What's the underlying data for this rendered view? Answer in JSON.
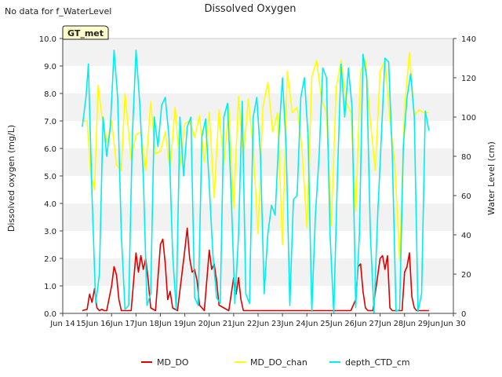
{
  "chart_data": {
    "type": "line",
    "title": "Dissolved Oxygen",
    "note": "No data for f_WaterLevel",
    "site_label": "GT_met",
    "xlabel": "",
    "ylabel_left": "Dissolved oxygen (mg/L)",
    "ylabel_right": "Water Level (cm)",
    "xlim": [
      14,
      30
    ],
    "ylim_left": [
      0,
      10
    ],
    "ylim_right": [
      0,
      140
    ],
    "x_ticks": [
      14,
      15,
      16,
      17,
      18,
      19,
      20,
      21,
      22,
      23,
      24,
      25,
      26,
      27,
      28,
      29,
      30
    ],
    "x_tick_labels": [
      "Jun 14",
      "15Jun",
      "16Jun",
      "17Jun",
      "18Jun",
      "19Jun",
      "20Jun",
      "21Jun",
      "22Jun",
      "23Jun",
      "24Jun",
      "25Jun",
      "26Jun",
      "27Jun",
      "28Jun",
      "29Jun",
      "Jun 30"
    ],
    "y_left_ticks": [
      0,
      1,
      2,
      3,
      4,
      5,
      6,
      7,
      8,
      9,
      10
    ],
    "y_left_tick_labels": [
      "0.0",
      "1.0",
      "2.0",
      "3.0",
      "4.0",
      "5.0",
      "6.0",
      "7.0",
      "8.0",
      "9.0",
      "10.0"
    ],
    "y_right_ticks": [
      0,
      20,
      40,
      60,
      80,
      100,
      120,
      140
    ],
    "y_right_tick_labels": [
      "0",
      "20",
      "40",
      "60",
      "80",
      "100",
      "120",
      "140"
    ],
    "grid": "horizontal bands",
    "legend_position": "bottom-center",
    "series": [
      {
        "name": "MD_DO",
        "axis": "left",
        "color": "#dd0000",
        "x": [
          14.8,
          15.0,
          15.1,
          15.2,
          15.3,
          15.4,
          15.5,
          15.6,
          15.7,
          15.8,
          16.0,
          16.1,
          16.2,
          16.3,
          16.4,
          16.5,
          16.6,
          16.8,
          17.0,
          17.1,
          17.2,
          17.3,
          17.4,
          17.5,
          17.6,
          17.8,
          18.0,
          18.1,
          18.2,
          18.3,
          18.4,
          18.5,
          18.7,
          19.0,
          19.1,
          19.2,
          19.3,
          19.4,
          19.5,
          19.6,
          19.8,
          20.0,
          20.1,
          20.2,
          20.3,
          20.4,
          20.6,
          20.8,
          21.0,
          21.1,
          21.2,
          21.3,
          21.4,
          21.6,
          21.8,
          22.0,
          22.5,
          23.0,
          23.5,
          24.0,
          24.5,
          25.0,
          25.5,
          25.8,
          26.0,
          26.1,
          26.2,
          26.3,
          26.4,
          26.5,
          26.7,
          27.0,
          27.1,
          27.2,
          27.3,
          27.4,
          27.5,
          27.7,
          27.9,
          28.0,
          28.1,
          28.2,
          28.3,
          28.4,
          28.5,
          28.6,
          28.8,
          29.0
        ],
        "y": [
          0.1,
          0.15,
          0.7,
          0.4,
          0.9,
          0.2,
          0.1,
          0.15,
          0.1,
          0.1,
          1.0,
          1.7,
          1.4,
          0.5,
          0.1,
          0.1,
          0.1,
          0.1,
          2.2,
          1.5,
          2.1,
          1.6,
          2.0,
          1.2,
          0.2,
          0.1,
          2.5,
          2.7,
          1.8,
          0.5,
          0.8,
          0.2,
          0.1,
          2.3,
          3.1,
          2.0,
          1.5,
          1.6,
          1.2,
          0.3,
          0.1,
          2.3,
          1.6,
          1.8,
          1.2,
          0.3,
          0.2,
          0.1,
          1.3,
          0.7,
          1.3,
          0.5,
          0.1,
          0.1,
          0.1,
          0.1,
          0.1,
          0.1,
          0.1,
          0.1,
          0.1,
          0.1,
          0.1,
          0.1,
          0.5,
          1.7,
          1.8,
          0.8,
          0.2,
          0.1,
          0.1,
          2.0,
          2.1,
          1.6,
          2.1,
          0.2,
          0.1,
          0.1,
          0.1,
          1.5,
          1.7,
          2.2,
          0.6,
          0.2,
          0.1,
          0.1,
          0.1,
          0.1
        ]
      },
      {
        "name": "MD_DO_chan",
        "axis": "left",
        "color": "#ffff00",
        "x": [
          14.8,
          15.0,
          15.15,
          15.3,
          15.45,
          15.6,
          15.8,
          16.0,
          16.2,
          16.4,
          16.55,
          16.8,
          17.0,
          17.2,
          17.4,
          17.6,
          17.8,
          18.0,
          18.2,
          18.4,
          18.6,
          18.8,
          19.0,
          19.2,
          19.4,
          19.6,
          19.8,
          20.0,
          20.2,
          20.4,
          20.6,
          20.8,
          21.0,
          21.2,
          21.4,
          21.6,
          21.8,
          22.0,
          22.2,
          22.4,
          22.6,
          22.8,
          23.0,
          23.2,
          23.4,
          23.6,
          23.8,
          24.0,
          24.2,
          24.4,
          24.6,
          24.8,
          25.0,
          25.2,
          25.4,
          25.6,
          25.8,
          26.0,
          26.2,
          26.4,
          26.6,
          26.8,
          27.0,
          27.2,
          27.4,
          27.6,
          27.8,
          28.0,
          28.2,
          28.4,
          28.6,
          28.8,
          29.0
        ],
        "y": [
          7.0,
          7.0,
          5.0,
          4.5,
          8.3,
          7.2,
          6.2,
          7.0,
          5.4,
          5.2,
          8.0,
          5.6,
          6.5,
          6.6,
          5.2,
          7.7,
          5.8,
          5.9,
          6.6,
          5.2,
          7.5,
          5.3,
          6.9,
          7.0,
          6.4,
          7.2,
          5.5,
          7.3,
          4.2,
          7.4,
          5.4,
          7.5,
          3.8,
          7.9,
          5.7,
          7.8,
          6.0,
          2.9,
          7.5,
          8.4,
          6.6,
          7.3,
          2.5,
          8.8,
          7.3,
          7.5,
          6.0,
          3.1,
          8.6,
          9.2,
          7.8,
          7.3,
          3.2,
          8.2,
          9.2,
          7.7,
          7.3,
          3.7,
          8.8,
          9.2,
          7.0,
          5.2,
          8.8,
          9.2,
          7.0,
          5.5,
          1.9,
          7.5,
          9.5,
          7.2,
          7.4,
          7.3,
          7.3
        ],
        "visible": true
      },
      {
        "name": "depth_CTD_cm",
        "axis": "right",
        "color": "#00eeee",
        "x": [
          14.8,
          14.95,
          15.05,
          15.2,
          15.35,
          15.5,
          15.65,
          15.8,
          15.95,
          16.1,
          16.25,
          16.4,
          16.55,
          16.7,
          16.85,
          17.0,
          17.15,
          17.3,
          17.45,
          17.6,
          17.75,
          17.9,
          18.05,
          18.2,
          18.35,
          18.5,
          18.65,
          18.8,
          18.95,
          19.1,
          19.25,
          19.4,
          19.55,
          19.7,
          19.85,
          20.0,
          20.15,
          20.3,
          20.45,
          20.6,
          20.75,
          20.9,
          21.05,
          21.2,
          21.35,
          21.5,
          21.65,
          21.8,
          21.95,
          22.1,
          22.25,
          22.4,
          22.55,
          22.7,
          22.85,
          23.0,
          23.15,
          23.3,
          23.45,
          23.6,
          23.75,
          23.9,
          24.05,
          24.2,
          24.35,
          24.5,
          24.65,
          24.8,
          24.95,
          25.1,
          25.25,
          25.4,
          25.55,
          25.7,
          25.85,
          26.0,
          26.15,
          26.3,
          26.45,
          26.6,
          26.75,
          26.9,
          27.05,
          27.2,
          27.35,
          27.5,
          27.65,
          27.8,
          27.95,
          28.1,
          28.25,
          28.4,
          28.55,
          28.7,
          28.85,
          29.0
        ],
        "y": [
          95,
          110,
          127,
          60,
          5,
          20,
          100,
          80,
          95,
          134,
          110,
          40,
          2,
          4,
          90,
          134,
          108,
          70,
          4,
          10,
          100,
          85,
          106,
          110,
          90,
          30,
          2,
          100,
          70,
          95,
          100,
          8,
          4,
          90,
          99,
          65,
          30,
          8,
          5,
          100,
          107,
          60,
          5,
          40,
          108,
          10,
          5,
          100,
          110,
          80,
          10,
          40,
          55,
          50,
          90,
          120,
          85,
          4,
          58,
          60,
          110,
          120,
          90,
          1,
          50,
          80,
          125,
          120,
          40,
          0,
          70,
          127,
          100,
          125,
          105,
          3,
          40,
          132,
          120,
          40,
          0,
          50,
          90,
          130,
          128,
          80,
          1,
          2,
          85,
          110,
          122,
          100,
          1,
          10,
          103,
          93
        ]
      }
    ],
    "legend": [
      "MD_DO",
      "MD_DO_chan",
      "depth_CTD_cm"
    ]
  }
}
